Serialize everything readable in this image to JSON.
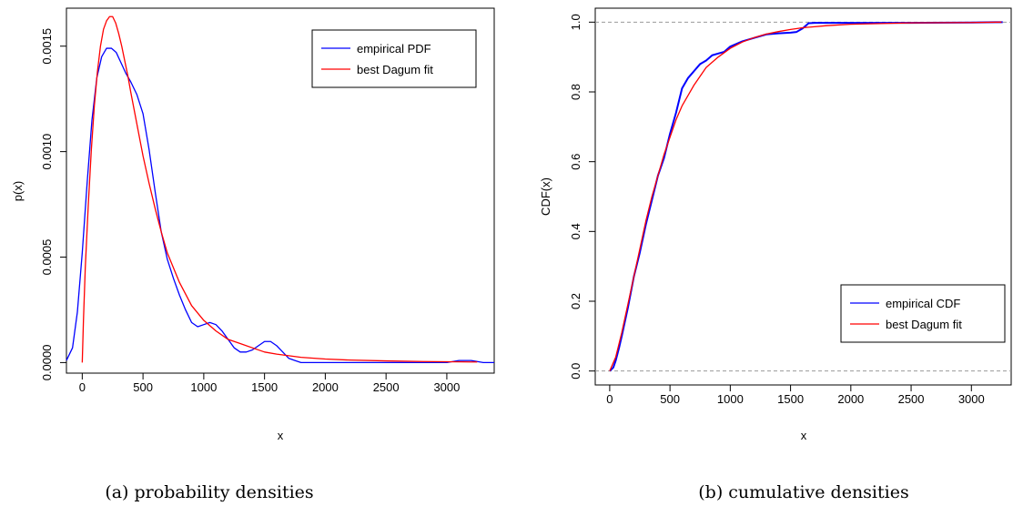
{
  "chart_data": [
    {
      "type": "line",
      "caption": "(a) probability densities",
      "xlabel": "x",
      "ylabel": "p(x)",
      "xlim": [
        -130,
        3390
      ],
      "ylim": [
        -5e-05,
        0.00168
      ],
      "xticks": [
        0,
        500,
        1000,
        1500,
        2000,
        2500,
        3000
      ],
      "xtick_labels": [
        "0",
        "500",
        "1000",
        "1500",
        "2000",
        "2500",
        "3000"
      ],
      "yticks": [
        0.0,
        0.0005,
        0.001,
        0.0015
      ],
      "ytick_labels": [
        "0.0000",
        "0.0005",
        "0.0010",
        "0.0015"
      ],
      "legend_position": "top-right",
      "series": [
        {
          "name": "empirical PDF",
          "color": "#0000ff",
          "x": [
            -130,
            -80,
            -40,
            0,
            40,
            80,
            120,
            160,
            200,
            240,
            280,
            320,
            360,
            400,
            450,
            500,
            550,
            600,
            650,
            700,
            750,
            800,
            850,
            900,
            950,
            1000,
            1050,
            1100,
            1150,
            1200,
            1250,
            1300,
            1350,
            1400,
            1450,
            1500,
            1550,
            1600,
            1650,
            1700,
            1750,
            1800,
            1900,
            2000,
            2500,
            3000,
            3100,
            3200,
            3300,
            3390
          ],
          "y": [
            1e-05,
            7e-05,
            0.00024,
            0.00052,
            0.00085,
            0.00115,
            0.00135,
            0.00145,
            0.00149,
            0.00149,
            0.00147,
            0.00142,
            0.00137,
            0.00133,
            0.00127,
            0.00118,
            0.00101,
            0.00081,
            0.00062,
            0.00049,
            0.0004,
            0.00032,
            0.00025,
            0.00019,
            0.00017,
            0.00018,
            0.00019,
            0.00018,
            0.00015,
            0.00011,
            7e-05,
            5e-05,
            5e-05,
            6e-05,
            8e-05,
            0.0001,
            0.0001,
            8e-05,
            5e-05,
            2e-05,
            1e-05,
            0.0,
            0.0,
            0.0,
            0.0,
            0.0,
            1e-05,
            1e-05,
            0.0,
            0.0
          ]
        },
        {
          "name": "best Dagum fit",
          "color": "#ff0000",
          "x": [
            0,
            10,
            25,
            50,
            75,
            100,
            125,
            150,
            175,
            200,
            225,
            250,
            275,
            300,
            325,
            350,
            375,
            400,
            450,
            500,
            550,
            600,
            650,
            700,
            800,
            900,
            1000,
            1100,
            1200,
            1300,
            1400,
            1500,
            1600,
            1800,
            2000,
            2200,
            2500,
            2800,
            3000,
            3200,
            3250
          ],
          "y": [
            0.0,
            0.0002,
            0.00045,
            0.00075,
            0.00101,
            0.00122,
            0.00138,
            0.0015,
            0.00158,
            0.00162,
            0.00164,
            0.00164,
            0.00161,
            0.00156,
            0.0015,
            0.00143,
            0.00136,
            0.00128,
            0.00113,
            0.00098,
            0.00085,
            0.00073,
            0.00062,
            0.00052,
            0.00038,
            0.00027,
            0.0002,
            0.00015,
            0.00011,
            9e-05,
            7e-05,
            5e-05,
            4e-05,
            2.5e-05,
            1.7e-05,
            1.2e-05,
            8e-06,
            5e-06,
            4e-06,
            3e-06,
            3e-06
          ]
        }
      ]
    },
    {
      "type": "line",
      "caption": "(b) cumulative densities",
      "xlabel": "x",
      "ylabel": "CDF(x)",
      "xlim": [
        -120,
        3330
      ],
      "ylim": [
        -0.04,
        1.04
      ],
      "xticks": [
        0,
        500,
        1000,
        1500,
        2000,
        2500,
        3000
      ],
      "xtick_labels": [
        "0",
        "500",
        "1000",
        "1500",
        "2000",
        "2500",
        "3000"
      ],
      "yticks": [
        0.0,
        0.2,
        0.4,
        0.6,
        0.8,
        1.0
      ],
      "ytick_labels": [
        "0.0",
        "0.2",
        "0.4",
        "0.6",
        "0.8",
        "1.0"
      ],
      "reference_lines": [
        0.0,
        1.0
      ],
      "legend_position": "bottom-right",
      "series": [
        {
          "name": "empirical CDF",
          "color": "#0000ff",
          "x": [
            0,
            30,
            50,
            80,
            100,
            150,
            200,
            250,
            300,
            350,
            400,
            450,
            500,
            550,
            600,
            650,
            700,
            750,
            800,
            850,
            900,
            950,
            1000,
            1100,
            1200,
            1300,
            1400,
            1500,
            1550,
            1600,
            1650,
            1700,
            2000,
            2500,
            3000,
            3200,
            3260
          ],
          "y": [
            0.0,
            0.01,
            0.03,
            0.07,
            0.1,
            0.18,
            0.27,
            0.34,
            0.42,
            0.49,
            0.56,
            0.61,
            0.68,
            0.74,
            0.81,
            0.84,
            0.86,
            0.88,
            0.89,
            0.905,
            0.91,
            0.915,
            0.93,
            0.945,
            0.955,
            0.965,
            0.968,
            0.97,
            0.972,
            0.982,
            0.997,
            0.998,
            0.998,
            0.998,
            0.999,
            1.0,
            1.0
          ]
        },
        {
          "name": "best Dagum fit",
          "color": "#ff0000",
          "x": [
            0,
            50,
            100,
            150,
            200,
            250,
            300,
            350,
            400,
            450,
            500,
            550,
            600,
            650,
            700,
            800,
            900,
            1000,
            1100,
            1200,
            1300,
            1400,
            1500,
            1600,
            1800,
            2000,
            2500,
            3000,
            3250
          ],
          "y": [
            0.0,
            0.04,
            0.11,
            0.19,
            0.27,
            0.35,
            0.43,
            0.5,
            0.56,
            0.62,
            0.67,
            0.72,
            0.76,
            0.79,
            0.82,
            0.87,
            0.9,
            0.925,
            0.943,
            0.956,
            0.966,
            0.973,
            0.979,
            0.984,
            0.99,
            0.994,
            0.998,
            0.999,
            1.0
          ]
        }
      ]
    }
  ]
}
